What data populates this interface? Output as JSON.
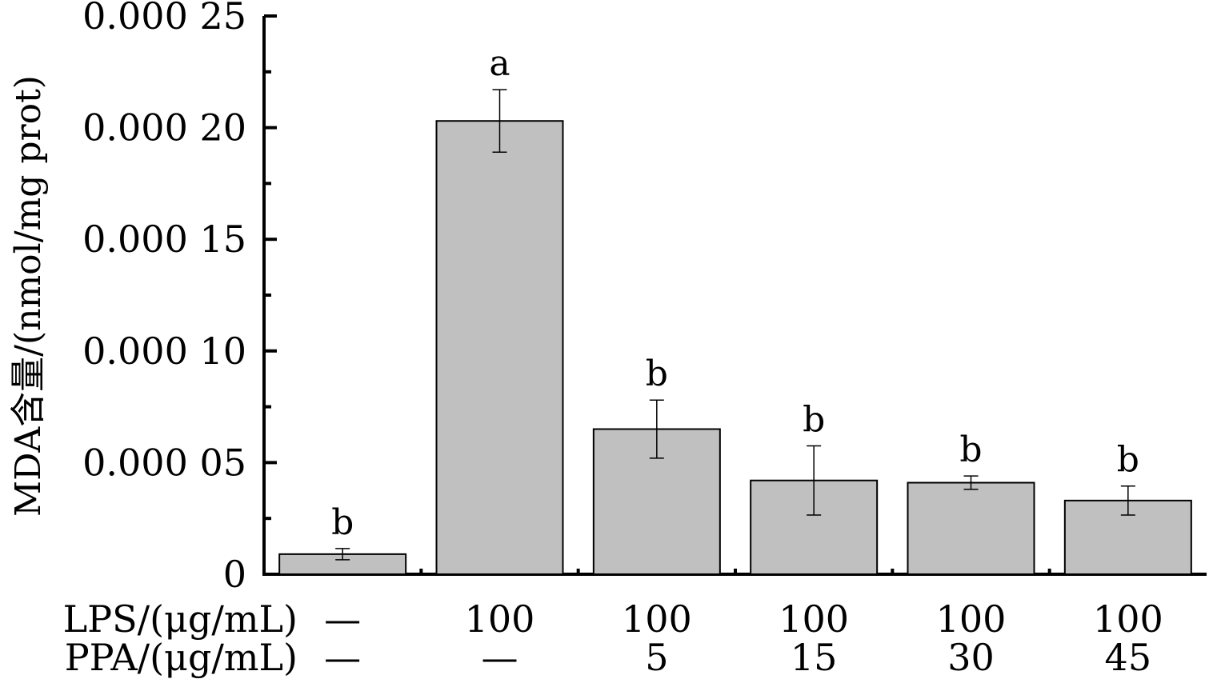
{
  "chart_data": {
    "type": "bar",
    "ylabel": "MDA含量/(nmol/mg prot)",
    "ylim": [
      0,
      0.00025
    ],
    "yticks": [
      0,
      5e-05,
      0.0001,
      0.00015,
      0.0002,
      0.00025
    ],
    "ytick_labels": [
      "0",
      "0.000 05",
      "0.000 10",
      "0.000 15",
      "0.000 20",
      "0.000 25"
    ],
    "values": [
      9e-06,
      0.000203,
      6.5e-05,
      4.2e-05,
      4.1e-05,
      3.3e-05
    ],
    "errors": [
      2.5e-06,
      1.4e-05,
      1.3e-05,
      1.55e-05,
      3e-06,
      6.5e-06
    ],
    "significance_labels": [
      "b",
      "a",
      "b",
      "b",
      "b",
      "b"
    ],
    "bar_color": "#c0c0c0",
    "grid": false,
    "factor_rows": [
      {
        "label": "LPS/(μg/mL)",
        "values": [
          "—",
          "100",
          "100",
          "100",
          "100",
          "100"
        ]
      },
      {
        "label": "PPA/(μg/mL)",
        "values": [
          "—",
          "—",
          "5",
          "15",
          "30",
          "45"
        ]
      }
    ]
  }
}
